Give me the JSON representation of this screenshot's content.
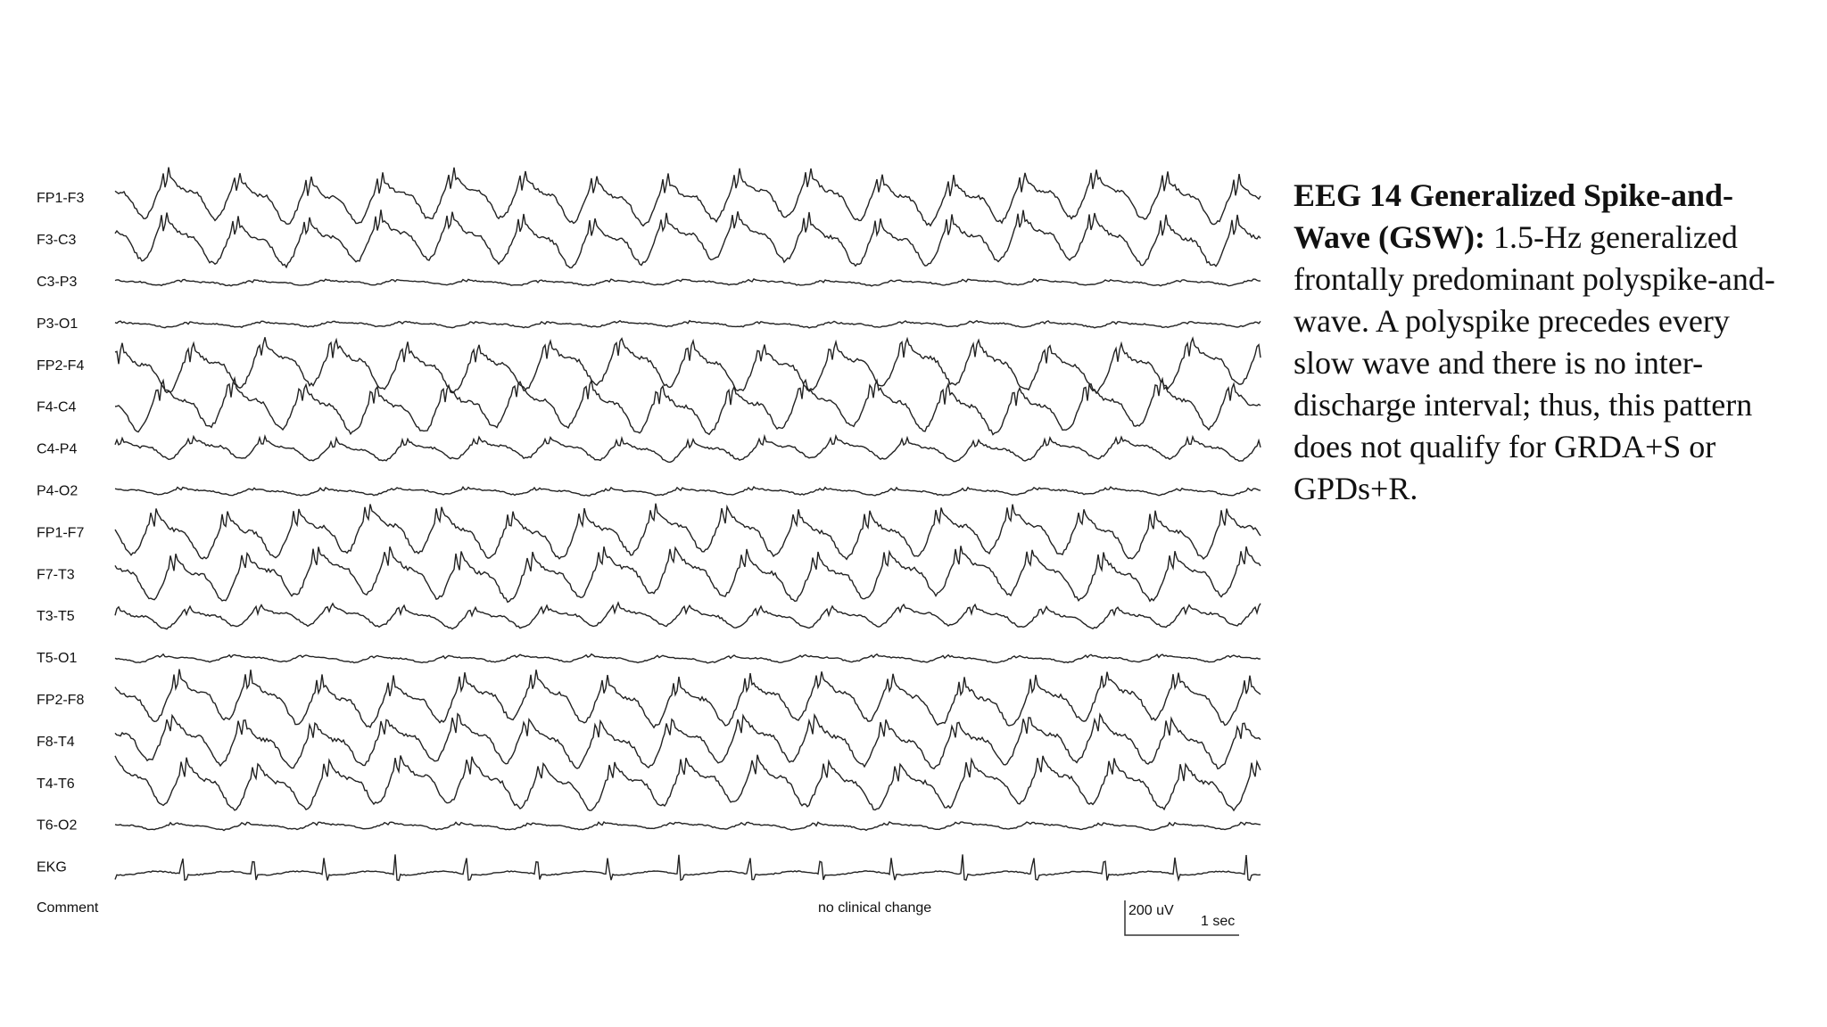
{
  "channels": [
    "FP1-F3",
    "F3-C3",
    "C3-P3",
    "P3-O1",
    "FP2-F4",
    "F4-C4",
    "C4-P4",
    "P4-O2",
    "FP1-F7",
    "F7-T3",
    "T3-T5",
    "T5-O1",
    "FP2-F8",
    "F8-T4",
    "T4-T6",
    "T6-O2",
    "EKG"
  ],
  "comment_label": "Comment",
  "comment": "no clinical change",
  "scale": {
    "amplitude": "200 uV",
    "time": "1 sec"
  },
  "caption": {
    "title": "EEG 14 Generalized Spike-and-Wave (GSW):",
    "text": "1.5-Hz generalized frontally predominant polyspike-and-wave. A polyspike precedes every slow wave and there is no inter-discharge interval; thus, this pattern does not qualify for GRDA+S or GPDs+R."
  }
}
